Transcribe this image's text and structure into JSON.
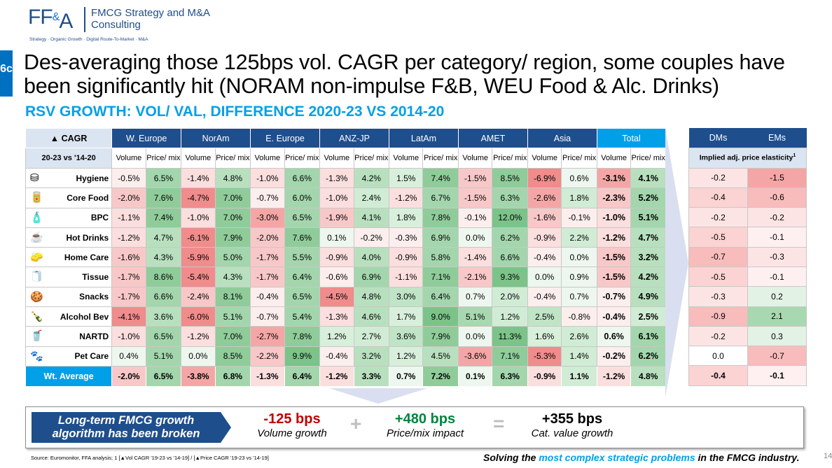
{
  "logo": {
    "mark_left": "FF",
    "mark_amp": "&",
    "mark_right": "A",
    "name": "FMCG Strategy and M&A Consulting",
    "tagline": "Strategy · Organic Growth · Digital Route-To-Market · M&A"
  },
  "slide_tab": "6c",
  "title": "Des-averaging those 125bps vol. CAGR per category/ region, some couples have been significantly hit (NORAM non-impulse F&B, WEU Food & Alc. Drinks)",
  "subtitle": "RSV GROWTH: VOL/ VAL, DIFFERENCE 2020-23 VS 2014-20",
  "table": {
    "cagr_label": "▲ CAGR",
    "period_label": "20-23 vs '14-20",
    "regions": [
      "W. Europe",
      "NorAm",
      "E. Europe",
      "ANZ-JP",
      "LatAm",
      "AMET",
      "Asia",
      "Total"
    ],
    "sub_vol": "Volume",
    "sub_price": "Price/ mix",
    "rows": [
      {
        "cat": "Hygiene",
        "icon": "diaper-icon",
        "vals": [
          "-0.5%",
          "6.5%",
          "-1.4%",
          "4.8%",
          "-1.0%",
          "6.6%",
          "-1.3%",
          "4.2%",
          "1.5%",
          "7.4%",
          "-1.5%",
          "8.5%",
          "-6.9%",
          "0.6%",
          "-3.1%",
          "4.1%"
        ]
      },
      {
        "cat": "Core Food",
        "icon": "food-icon",
        "vals": [
          "-2.0%",
          "7.6%",
          "-4.7%",
          "7.0%",
          "-0.7%",
          "6.0%",
          "-1.0%",
          "2.4%",
          "-1.2%",
          "6.7%",
          "-1.5%",
          "6.3%",
          "-2.6%",
          "1.8%",
          "-2.3%",
          "5.2%"
        ]
      },
      {
        "cat": "BPC",
        "icon": "cosmetics-icon",
        "vals": [
          "-1.1%",
          "7.4%",
          "-1.0%",
          "7.0%",
          "-3.0%",
          "6.5%",
          "-1.9%",
          "4.1%",
          "1.8%",
          "7.8%",
          "-0.1%",
          "12.0%",
          "-1.6%",
          "-0.1%",
          "-1.0%",
          "5.1%"
        ]
      },
      {
        "cat": "Hot Drinks",
        "icon": "coffee-icon",
        "vals": [
          "-1.2%",
          "4.7%",
          "-6.1%",
          "7.9%",
          "-2.0%",
          "7.6%",
          "0.1%",
          "-0.2%",
          "-0.3%",
          "6.9%",
          "0.0%",
          "6.2%",
          "-0.9%",
          "2.2%",
          "-1.2%",
          "4.7%"
        ]
      },
      {
        "cat": "Home Care",
        "icon": "spray-icon",
        "vals": [
          "-1.6%",
          "4.3%",
          "-5.9%",
          "5.0%",
          "-1.7%",
          "5.5%",
          "-0.9%",
          "4.0%",
          "-0.9%",
          "5.8%",
          "-1.4%",
          "6.6%",
          "-0.4%",
          "0.0%",
          "-1.5%",
          "3.2%"
        ]
      },
      {
        "cat": "Tissue",
        "icon": "tissue-roll-icon",
        "vals": [
          "-1.7%",
          "8.6%",
          "-5.4%",
          "4.3%",
          "-1.7%",
          "6.4%",
          "-0.6%",
          "6.9%",
          "-1.1%",
          "7.1%",
          "-2.1%",
          "9.3%",
          "0.0%",
          "0.9%",
          "-1.5%",
          "4.2%"
        ]
      },
      {
        "cat": "Snacks",
        "icon": "snacks-icon",
        "vals": [
          "-1.7%",
          "6.6%",
          "-2.4%",
          "8.1%",
          "-0.4%",
          "6.5%",
          "-4.5%",
          "4.8%",
          "3.0%",
          "6.4%",
          "0.7%",
          "2.0%",
          "-0.4%",
          "0.7%",
          "-0.7%",
          "4.9%"
        ]
      },
      {
        "cat": "Alcohol Bev",
        "icon": "bottle-icon",
        "vals": [
          "-4.1%",
          "3.6%",
          "-6.0%",
          "5.1%",
          "-0.7%",
          "5.4%",
          "-1.3%",
          "4.6%",
          "1.7%",
          "9.0%",
          "5.1%",
          "1.2%",
          "2.5%",
          "-0.8%",
          "-0.4%",
          "2.5%"
        ]
      },
      {
        "cat": "NARTD",
        "icon": "soda-icon",
        "vals": [
          "-1.0%",
          "6.5%",
          "-1.2%",
          "7.0%",
          "-2.7%",
          "7.8%",
          "1.2%",
          "2.7%",
          "3.6%",
          "7.9%",
          "0.0%",
          "11.3%",
          "1.6%",
          "2.6%",
          "0.6%",
          "6.1%"
        ]
      },
      {
        "cat": "Pet Care",
        "icon": "pet-icon",
        "vals": [
          "0.4%",
          "5.1%",
          "0.0%",
          "8.5%",
          "-2.2%",
          "9.9%",
          "-0.4%",
          "3.2%",
          "1.2%",
          "4.5%",
          "-3.6%",
          "7.1%",
          "-5.3%",
          "1.4%",
          "-0.2%",
          "6.2%"
        ]
      }
    ],
    "wt_label": "Wt. Average",
    "wt_vals": [
      "-2.0%",
      "6.5%",
      "-3.8%",
      "6.8%",
      "-1.3%",
      "6.4%",
      "-1.2%",
      "3.3%",
      "0.7%",
      "7.2%",
      "0.1%",
      "6.3%",
      "-0.9%",
      "1.1%",
      "-1.2%",
      "4.8%"
    ]
  },
  "side": {
    "headers": [
      "DMs",
      "EMs"
    ],
    "sub": "Implied adj. price elasticity",
    "sup": "1",
    "rows": [
      [
        "-0.2",
        "-1.5"
      ],
      [
        "-0.4",
        "-0.6"
      ],
      [
        "-0.2",
        "-0.2"
      ],
      [
        "-0.5",
        "-0.1"
      ],
      [
        "-0.7",
        "-0.3"
      ],
      [
        "-0.5",
        "-0.1"
      ],
      [
        "-0.3",
        "0.2"
      ],
      [
        "-0.9",
        "2.1"
      ],
      [
        "-0.2",
        "0.3"
      ],
      [
        "0.0",
        "-0.7"
      ]
    ],
    "total": [
      "-0.4",
      "-0.1"
    ]
  },
  "summary": {
    "chevron": "Long-term FMCG growth algorithm has been broken",
    "k1_val": "-125 bps",
    "k1_lbl": "Volume growth",
    "plus": "+",
    "k2_val": "+480 bps",
    "k2_lbl": "Price/mix impact",
    "eq": "=",
    "k3_val": "+355 bps",
    "k3_lbl": "Cat. value growth"
  },
  "colors": {
    "navy": "#1f4e8c",
    "cyan": "#00a0e9",
    "red_val": "#c00000",
    "green_val": "#00843d"
  },
  "source": "Source: Euromonitor, FFA analysis; 1 [▲Vol CAGR '19-23 vs '14-19] / [▲Price CAGR '19-23 vs '14-19]",
  "tagline_pre": "Solving the ",
  "tagline_hl": "most complex strategic problems",
  "tagline_post": " in the FMCG industry.",
  "page_no": "14"
}
